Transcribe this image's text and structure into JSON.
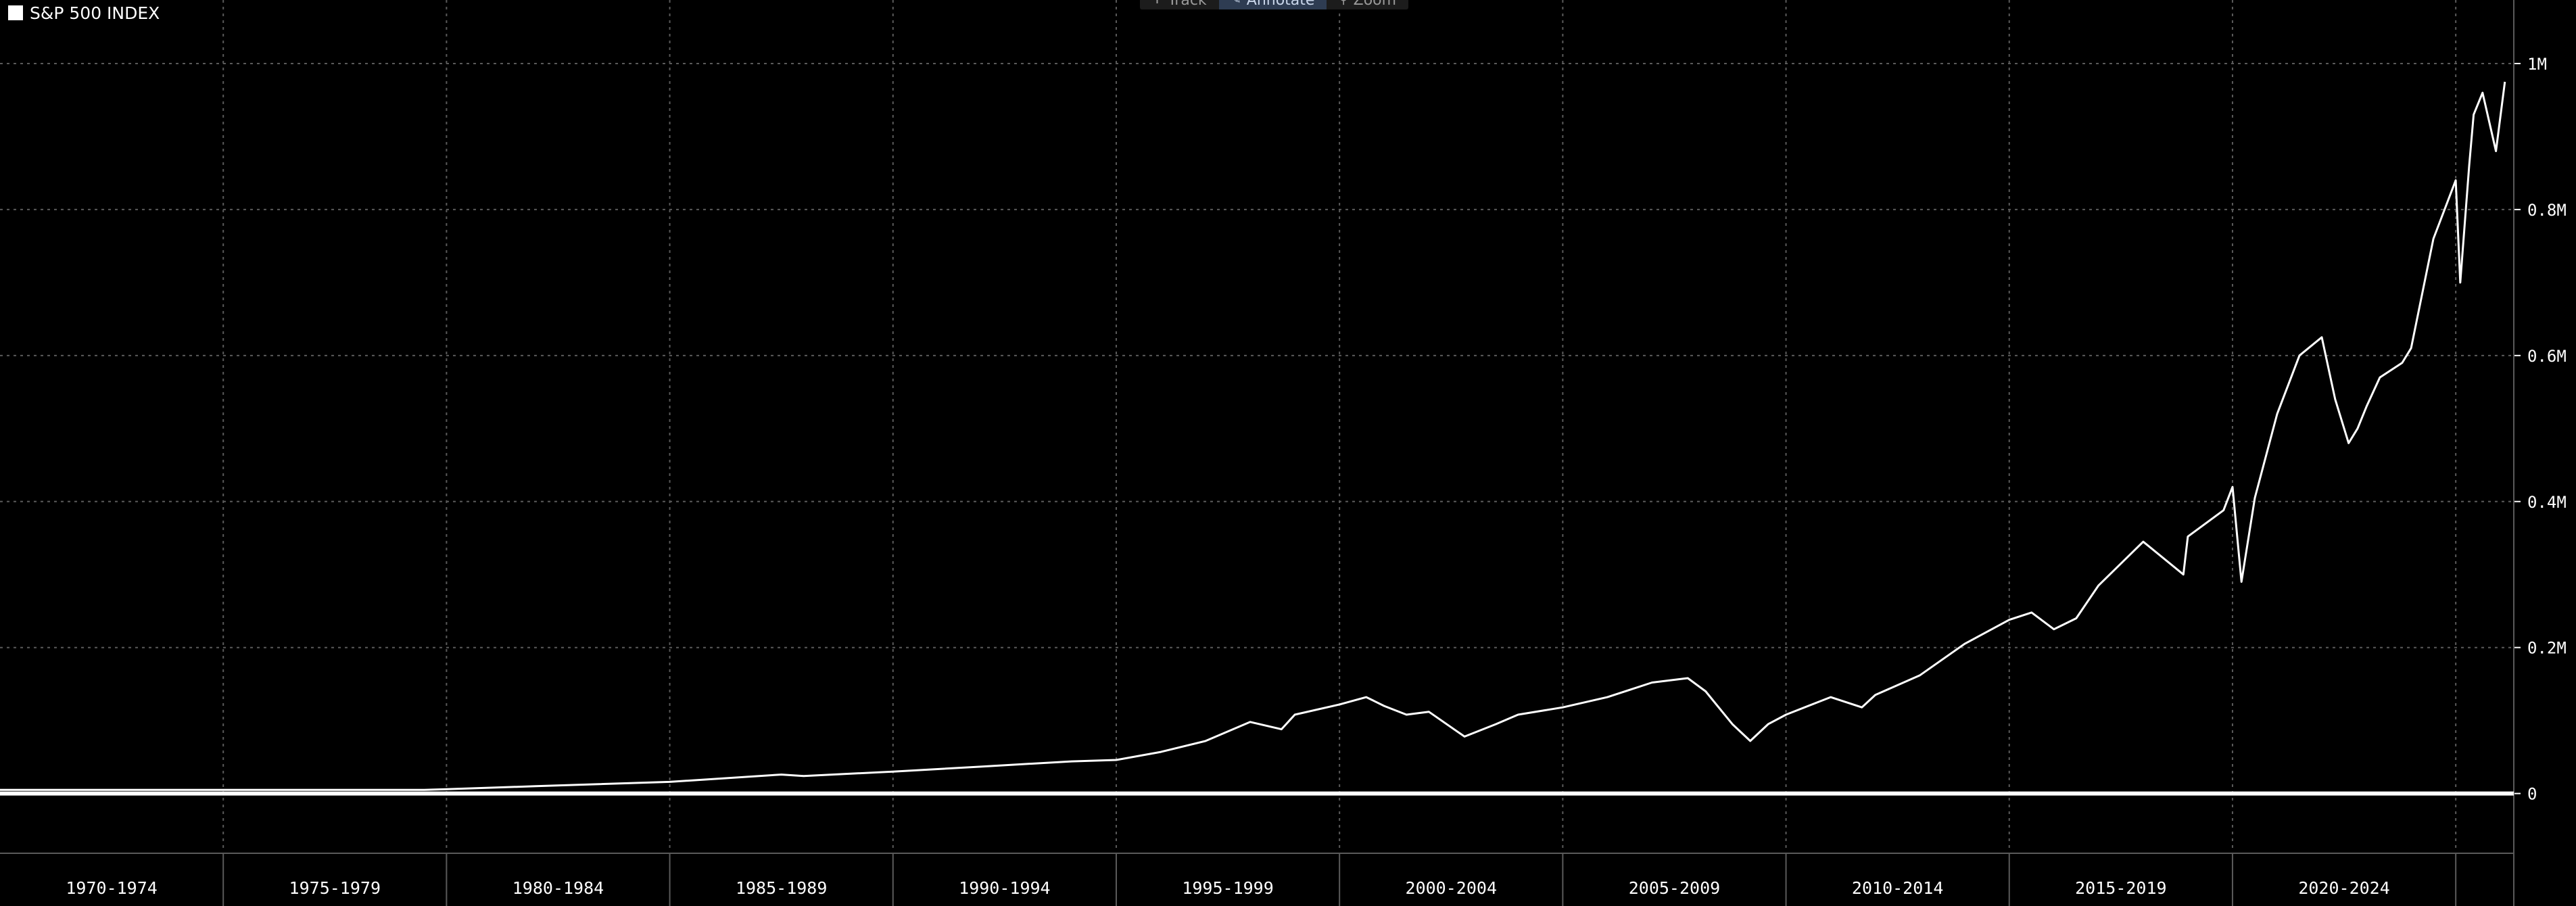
{
  "legend": {
    "label": "S&P 500 INDEX",
    "color": "#ffffff"
  },
  "toolbar": {
    "items": [
      {
        "label": "Track",
        "icon": "crosshair-icon",
        "active": false
      },
      {
        "label": "Annotate",
        "icon": "pencil-icon",
        "active": true
      },
      {
        "label": "Zoom",
        "icon": "magnifier-icon",
        "active": false
      }
    ]
  },
  "colors": {
    "background": "#000000",
    "line": "#ffffff",
    "grid": "#5a5a5a",
    "axis_text": "#ffffff"
  },
  "chart_data": {
    "type": "line",
    "title": "",
    "xlabel": "",
    "ylabel": "",
    "grid": true,
    "legend_position": "top-left",
    "y_axis_side": "right",
    "ylim": [
      -80000,
      1050000
    ],
    "y_ticks": [
      {
        "value": 0,
        "label": "0"
      },
      {
        "value": 200000,
        "label": "0.2M"
      },
      {
        "value": 400000,
        "label": "0.4M"
      },
      {
        "value": 600000,
        "label": "0.6M"
      },
      {
        "value": 800000,
        "label": "0.8M"
      },
      {
        "value": 1000000,
        "label": "1M"
      }
    ],
    "xlim": [
      1970.0,
      2026.3
    ],
    "x_periods": [
      "1970-1974",
      "1975-1979",
      "1980-1984",
      "1985-1989",
      "1990-1994",
      "1995-1999",
      "2000-2004",
      "2005-2009",
      "2010-2014",
      "2015-2019",
      "2020-2024"
    ],
    "x_period_starts": [
      1970,
      1975,
      1980,
      1985,
      1990,
      1995,
      2000,
      2005,
      2010,
      2015,
      2020,
      2025
    ],
    "series": [
      {
        "name": "S&P 500 INDEX",
        "x": [
          1970.0,
          1975.0,
          1979.5,
          1980.0,
          1982.0,
          1985.0,
          1987.5,
          1988.0,
          1990.0,
          1992.0,
          1994.0,
          1995.0,
          1996.0,
          1997.0,
          1998.0,
          1998.7,
          1999.0,
          2000.0,
          2000.6,
          2001.0,
          2001.5,
          2002.0,
          2002.8,
          2003.5,
          2004.0,
          2005.0,
          2006.0,
          2007.0,
          2007.8,
          2008.2,
          2008.8,
          2009.2,
          2009.6,
          2010.0,
          2011.0,
          2011.7,
          2012.0,
          2013.0,
          2014.0,
          2015.0,
          2015.5,
          2016.0,
          2016.5,
          2017.0,
          2018.0,
          2018.9,
          2019.0,
          2019.8,
          2020.0,
          2020.2,
          2020.5,
          2021.0,
          2021.5,
          2022.0,
          2022.3,
          2022.6,
          2022.8,
          2023.0,
          2023.3,
          2023.8,
          2024.0,
          2024.5,
          2025.0,
          2025.1,
          2025.3,
          2025.4,
          2025.6,
          2025.9,
          2026.1
        ],
        "y": [
          5000,
          5000,
          5000,
          6000,
          10000,
          16000,
          26000,
          24000,
          30000,
          37000,
          44000,
          46000,
          57000,
          72000,
          98000,
          88000,
          108000,
          122000,
          132000,
          120000,
          108000,
          112000,
          78000,
          95000,
          108000,
          118000,
          132000,
          152000,
          158000,
          140000,
          95000,
          72000,
          95000,
          108000,
          132000,
          118000,
          135000,
          162000,
          205000,
          238000,
          248000,
          225000,
          240000,
          285000,
          345000,
          300000,
          352000,
          388000,
          420000,
          290000,
          405000,
          520000,
          600000,
          625000,
          540000,
          480000,
          500000,
          530000,
          570000,
          590000,
          610000,
          760000,
          840000,
          700000,
          860000,
          930000,
          960000,
          880000,
          975000
        ]
      }
    ]
  }
}
